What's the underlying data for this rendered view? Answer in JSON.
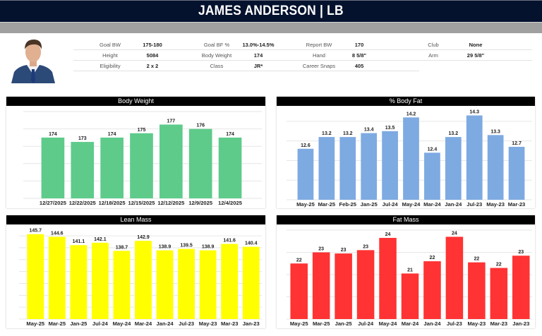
{
  "header": {
    "title": "JAMES ANDERSON | LB"
  },
  "profile": {
    "photo": "player-headshot",
    "rows": [
      [
        {
          "label": "Goal BW",
          "value": "175-180"
        },
        {
          "label": "Goal BF %",
          "value": "13.0%-14.5%"
        },
        {
          "label": "Report BW",
          "value": "170"
        },
        {
          "label": "Club",
          "value": "None"
        }
      ],
      [
        {
          "label": "Height",
          "value": "5084"
        },
        {
          "label": "Body Weight",
          "value": "174"
        },
        {
          "label": "Hand",
          "value": "8 5/8\""
        },
        {
          "label": "Arm",
          "value": "29 5/8\""
        }
      ],
      [
        {
          "label": "Eligibility",
          "value": "2 x 2"
        },
        {
          "label": "Class",
          "value": "JR*"
        },
        {
          "label": "Career Snaps",
          "value": "405"
        }
      ]
    ]
  },
  "colors": {
    "header_bg": "#04122e",
    "subbar": "#a0a0a0",
    "body_weight": "#5ecb8b",
    "body_fat": "#7eaae2",
    "lean_mass": "#ffff00",
    "fat_mass": "#ff3333"
  },
  "chart_data": [
    {
      "id": "body_weight",
      "type": "bar",
      "title": "Body Weight",
      "categories": [
        "12/27/2025",
        "12/22/2025",
        "12/18/2025",
        "12/15/2025",
        "12/12/2025",
        "12/9/2025",
        "12/4/2025"
      ],
      "values": [
        174,
        173,
        174,
        175,
        177,
        176,
        174
      ],
      "labels": [
        "174",
        "173",
        "174",
        "175",
        "177",
        "176",
        "174"
      ],
      "xlabel": "",
      "ylabel": "",
      "ylim": [
        160,
        180
      ],
      "gridlines": [
        160,
        164,
        168,
        172,
        176,
        180
      ],
      "grid": true
    },
    {
      "id": "body_fat",
      "type": "bar",
      "title": "% Body Fat",
      "categories": [
        "May-25",
        "Mar-25",
        "Feb-25",
        "Jan-25",
        "Jul-24",
        "May-24",
        "Mar-24",
        "Jan-24",
        "Jul-23",
        "May-23",
        "Mar-23"
      ],
      "values": [
        12.6,
        13.2,
        13.2,
        13.4,
        13.5,
        14.2,
        12.4,
        13.2,
        14.3,
        13.3,
        12.7
      ],
      "labels": [
        "12.6",
        "13.2",
        "13.2",
        "13.4",
        "13.5",
        "14.2",
        "12.4",
        "13.2",
        "14.3",
        "13.3",
        "12.7"
      ],
      "xlabel": "",
      "ylabel": "",
      "ylim": [
        10,
        14.5
      ],
      "gridlines": [
        10,
        11,
        12,
        13,
        14
      ],
      "grid": true
    },
    {
      "id": "lean_mass",
      "type": "bar",
      "title": "Lean Mass",
      "categories": [
        "May-25",
        "Mar-25",
        "Jan-25",
        "Jul-24",
        "May-24",
        "Mar-24",
        "Jan-24",
        "Jul-23",
        "May-23",
        "Mar-23",
        "Jan-23"
      ],
      "values": [
        145.7,
        144.6,
        141.1,
        142.1,
        138.7,
        142.9,
        138.9,
        139.5,
        138.9,
        141.6,
        140.4
      ],
      "labels": [
        "145.7",
        "144.6",
        "141.1",
        "142.1",
        "138.7",
        "142.9",
        "138.9",
        "139.5",
        "138.9",
        "141.6",
        "140.4"
      ],
      "xlabel": "",
      "ylabel": "",
      "ylim": [
        110,
        148
      ],
      "gridlines": [
        110,
        115,
        120,
        125,
        130,
        135,
        140,
        145
      ],
      "grid": true
    },
    {
      "id": "fat_mass",
      "type": "bar",
      "title": "Fat Mass",
      "categories": [
        "May-25",
        "Mar-25",
        "Jan-25",
        "Jul-24",
        "May-24",
        "Mar-24",
        "Jan-24",
        "Jul-23",
        "May-23",
        "Mar-23",
        "Jan-23"
      ],
      "values": [
        22.0,
        23.0,
        22.9,
        23.2,
        24.3,
        21.1,
        22.2,
        24.4,
        22.1,
        21.6,
        22.7
      ],
      "labels": [
        "22",
        "23",
        "23",
        "23",
        "24",
        "21",
        "22",
        "24",
        "22",
        "22",
        "23"
      ],
      "xlabel": "",
      "ylabel": "",
      "ylim": [
        17,
        25
      ],
      "gridlines": [
        17,
        19,
        21,
        23,
        25
      ],
      "grid": true
    }
  ]
}
